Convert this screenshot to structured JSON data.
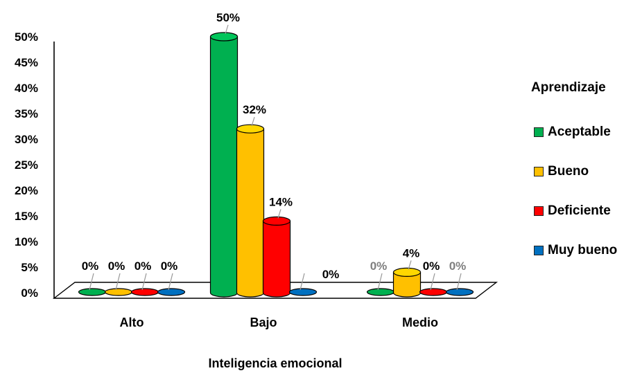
{
  "chart_data": {
    "type": "bar",
    "xlabel": "Inteligencia emocional",
    "ylabel": "",
    "ylim": [
      0,
      50
    ],
    "yticks": [
      "0%",
      "5%",
      "10%",
      "15%",
      "20%",
      "25%",
      "30%",
      "35%",
      "40%",
      "45%",
      "50%"
    ],
    "categories": [
      "Alto",
      "Bajo",
      "Medio"
    ],
    "legend_title": "Aprendizaje",
    "legend_position": "right",
    "series": [
      {
        "name": "Aceptable",
        "color": "#00B050",
        "values": [
          0,
          50,
          0
        ],
        "labels": [
          "0%",
          "50%",
          "0%"
        ]
      },
      {
        "name": "Bueno",
        "color": "#FFC000",
        "values": [
          0,
          32,
          4
        ],
        "labels": [
          "0%",
          "32%",
          "4%"
        ]
      },
      {
        "name": "Deficiente",
        "color": "#FF0000",
        "values": [
          0,
          14,
          0
        ],
        "labels": [
          "0%",
          "14%",
          "0%"
        ]
      },
      {
        "name": "Muy bueno",
        "color": "#0070C0",
        "values": [
          0,
          0,
          0
        ],
        "labels": [
          "0%",
          "0%",
          "0%"
        ]
      }
    ]
  }
}
